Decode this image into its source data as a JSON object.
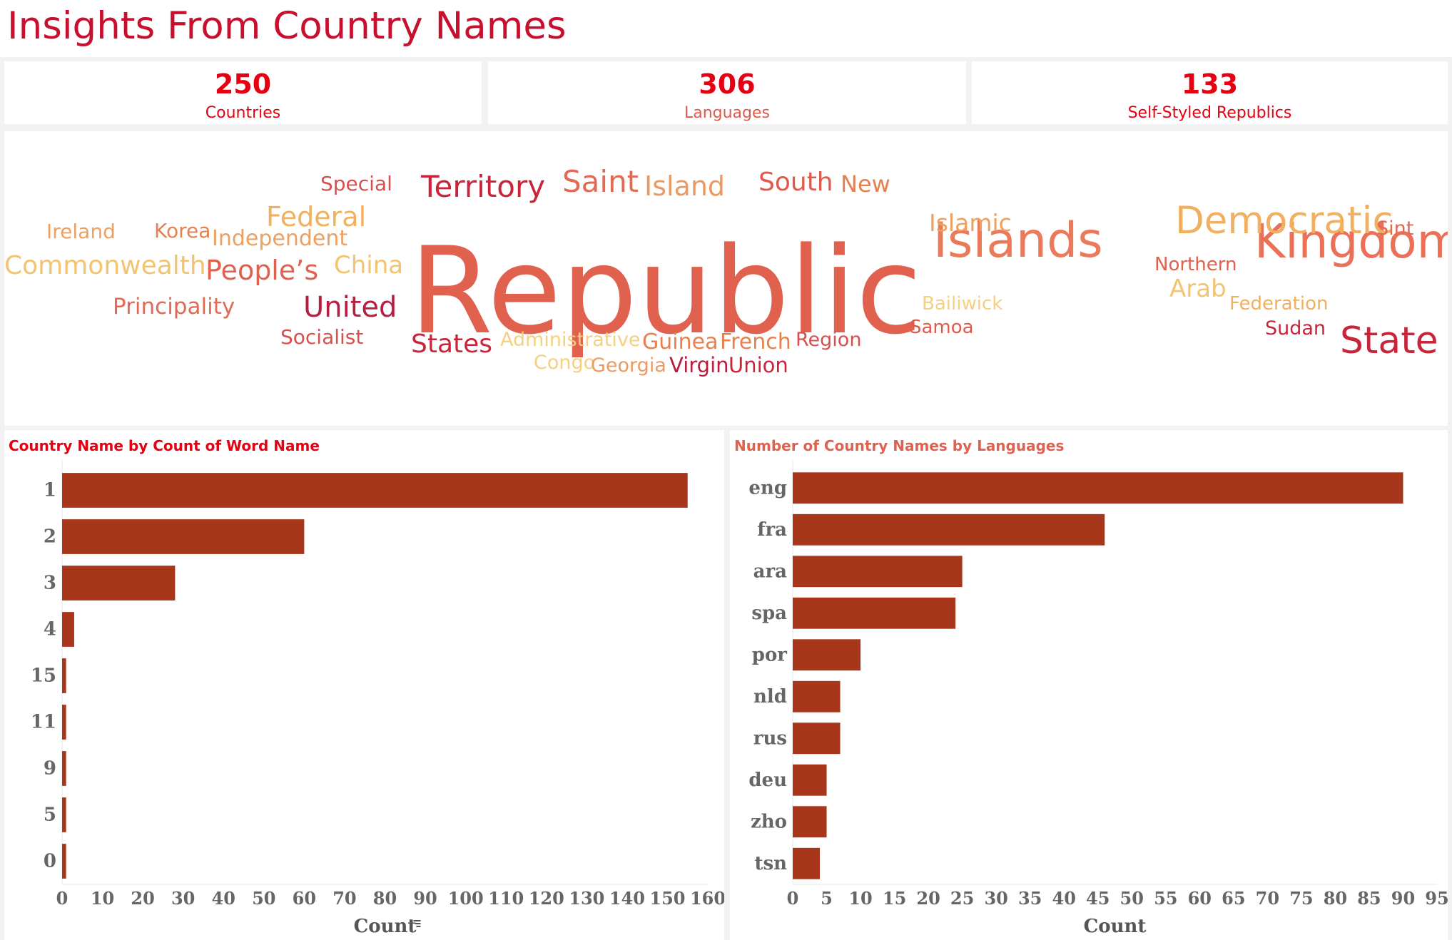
{
  "page": {
    "title": "Insights From Country Names"
  },
  "kpis": [
    {
      "value": "250",
      "label": "Countries"
    },
    {
      "value": "306",
      "label": "Languages"
    },
    {
      "value": "133",
      "label": "Self-Styled Republics"
    }
  ],
  "word_cloud": {
    "words": [
      {
        "text": "Republic",
        "color": "#e0614e"
      },
      {
        "text": "Islands",
        "color": "#ea7a5a"
      },
      {
        "text": "Kingdom",
        "color": "#ea7058"
      },
      {
        "text": "Democratic",
        "color": "#f0b060"
      },
      {
        "text": "State",
        "color": "#c8253a"
      },
      {
        "text": "Territory",
        "color": "#c8253a"
      },
      {
        "text": "Saint",
        "color": "#e26a55"
      },
      {
        "text": "Island",
        "color": "#eb9a63"
      },
      {
        "text": "South",
        "color": "#df5a4c"
      },
      {
        "text": "New",
        "color": "#e6804f"
      },
      {
        "text": "Special",
        "color": "#d94f50"
      },
      {
        "text": "Federal",
        "color": "#f0b060"
      },
      {
        "text": "Ireland",
        "color": "#eda060"
      },
      {
        "text": "Korea",
        "color": "#e6804f"
      },
      {
        "text": "Independent",
        "color": "#eda060"
      },
      {
        "text": "Commonwealth",
        "color": "#f2c370"
      },
      {
        "text": "People’s",
        "color": "#e0614e"
      },
      {
        "text": "China",
        "color": "#f2c370"
      },
      {
        "text": "Principality",
        "color": "#e26a55"
      },
      {
        "text": "United",
        "color": "#b81c3e"
      },
      {
        "text": "Socialist",
        "color": "#d94f50"
      },
      {
        "text": "Islamic",
        "color": "#eda060"
      },
      {
        "text": "Sint",
        "color": "#e26a55"
      },
      {
        "text": "Northern",
        "color": "#e0614e"
      },
      {
        "text": "Arab",
        "color": "#f2c370"
      },
      {
        "text": "Federation",
        "color": "#f0b060"
      },
      {
        "text": "Bailiwick",
        "color": "#f5d080"
      },
      {
        "text": "Samoa",
        "color": "#df5a4c"
      },
      {
        "text": "Sudan",
        "color": "#c8253a"
      },
      {
        "text": "States",
        "color": "#c8253a"
      },
      {
        "text": "Administrative",
        "color": "#f5d080"
      },
      {
        "text": "Guinea",
        "color": "#e6804f"
      },
      {
        "text": "French",
        "color": "#e6804f"
      },
      {
        "text": "Region",
        "color": "#d94f50"
      },
      {
        "text": "Congo",
        "color": "#f5d080"
      },
      {
        "text": "Georgia",
        "color": "#eb9a63"
      },
      {
        "text": "Virgin",
        "color": "#b81c3e"
      },
      {
        "text": "Union",
        "color": "#c8253a"
      }
    ]
  },
  "chart_data": [
    {
      "type": "bar",
      "orientation": "horizontal",
      "title": "Country Name by Count of Word Name",
      "title_color": "#e60012",
      "categories": [
        "1",
        "2",
        "3",
        "4",
        "15",
        "11",
        "9",
        "5",
        "0"
      ],
      "values": [
        155,
        60,
        28,
        3,
        1,
        1,
        1,
        1,
        1
      ],
      "xlabel": "Count",
      "xlim": [
        0,
        160
      ],
      "xticks": [
        0,
        10,
        20,
        30,
        40,
        50,
        60,
        70,
        80,
        90,
        100,
        110,
        120,
        130,
        140,
        150,
        160
      ],
      "bar_color": "#a8361a",
      "sort_icon": "sort-descending-icon"
    },
    {
      "type": "bar",
      "orientation": "horizontal",
      "title": "Number of Country Names by Languages",
      "title_color": "#e0614e",
      "categories": [
        "eng",
        "fra",
        "ara",
        "spa",
        "por",
        "nld",
        "rus",
        "deu",
        "zho",
        "tsn"
      ],
      "values": [
        90,
        46,
        25,
        24,
        10,
        7,
        7,
        5,
        5,
        4
      ],
      "xlabel": "Count",
      "xlim": [
        0,
        95
      ],
      "xticks": [
        0,
        5,
        10,
        15,
        20,
        25,
        30,
        35,
        40,
        45,
        50,
        55,
        60,
        65,
        70,
        75,
        80,
        85,
        90,
        95
      ],
      "bar_color": "#a8361a"
    }
  ]
}
